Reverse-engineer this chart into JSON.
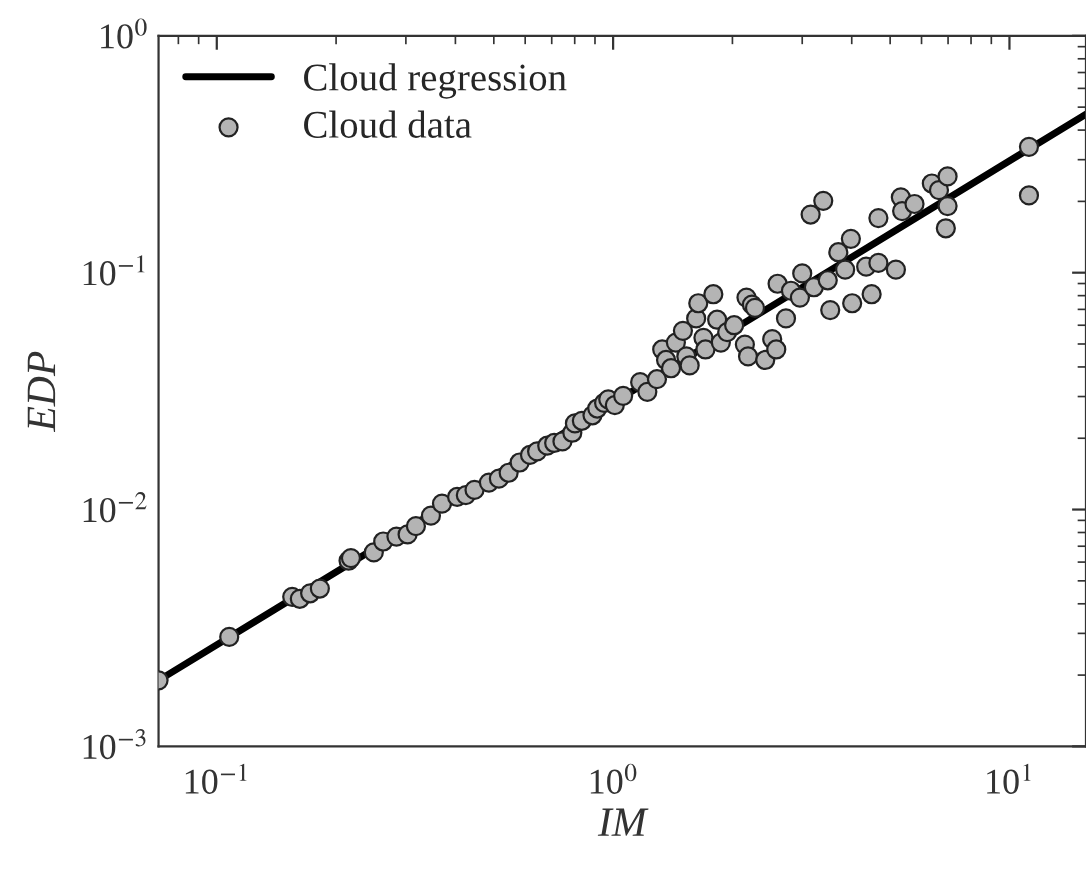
{
  "chart_data": {
    "type": "scatter",
    "xlabel": "IM",
    "ylabel": "EDP",
    "log": "xy",
    "xlim": [
      0.0713,
      15.6
    ],
    "ylim": [
      0.001,
      1
    ],
    "xticks": [
      {
        "value": 0.1,
        "label": "10$^{−1}$"
      },
      {
        "value": 1,
        "label": "10$^{0}$"
      },
      {
        "value": 10,
        "label": "10$^{1}$"
      }
    ],
    "yticks": [
      {
        "value": 0.001,
        "label": "10$^{−3}$"
      },
      {
        "value": 0.01,
        "label": "10$^{−2}$"
      },
      {
        "value": 0.1,
        "label": "10$^{−1}$"
      },
      {
        "value": 1,
        "label": "10$^{0}$"
      }
    ],
    "grid": false,
    "legend": "top left",
    "series": [
      {
        "name": "Cloud regression",
        "type": "line",
        "color": "#000000",
        "marker": "none",
        "line_style": "solid",
        "x": [
          0.0713,
          15.6
        ],
        "values": [
          0.0019,
          0.467
        ]
      },
      {
        "name": "Cloud data",
        "color": "#b4b4b4",
        "marker": "circle",
        "x": [
          0.0713,
          0.1075,
          0.155,
          0.162,
          0.172,
          0.182,
          0.215,
          0.218,
          0.249,
          0.263,
          0.284,
          0.303,
          0.318,
          0.347,
          0.37,
          0.404,
          0.425,
          0.447,
          0.486,
          0.515,
          0.545,
          0.581,
          0.617,
          0.643,
          0.682,
          0.71,
          0.745,
          0.789,
          0.801,
          0.834,
          0.887,
          0.912,
          0.949,
          0.972,
          1.01,
          1.06,
          1.17,
          1.22,
          1.29,
          1.33,
          1.36,
          1.4,
          1.44,
          1.5,
          1.53,
          1.56,
          1.62,
          1.64,
          1.69,
          1.71,
          1.79,
          1.83,
          1.87,
          1.94,
          2.02,
          2.15,
          2.17,
          2.19,
          2.24,
          2.28,
          2.42,
          2.52,
          2.58,
          2.6,
          2.73,
          2.81,
          2.96,
          3.0,
          3.15,
          3.21,
          3.39,
          3.48,
          3.53,
          3.7,
          3.85,
          3.98,
          4.01,
          4.35,
          4.49,
          4.67,
          4.67,
          5.17,
          5.32,
          5.36,
          5.76,
          6.37,
          6.64,
          6.91,
          6.98,
          6.98,
          11.2,
          11.2
        ],
        "values": [
          0.0019,
          0.0029,
          0.00428,
          0.0042,
          0.00443,
          0.00464,
          0.00608,
          0.00624,
          0.00659,
          0.00733,
          0.00769,
          0.00785,
          0.00851,
          0.00942,
          0.0106,
          0.0113,
          0.0115,
          0.0121,
          0.013,
          0.0135,
          0.0143,
          0.0158,
          0.017,
          0.0176,
          0.0186,
          0.0191,
          0.0194,
          0.0211,
          0.0231,
          0.0237,
          0.025,
          0.0267,
          0.0282,
          0.0292,
          0.0276,
          0.0302,
          0.0345,
          0.0314,
          0.0355,
          0.0474,
          0.0428,
          0.0395,
          0.0507,
          0.0568,
          0.0443,
          0.0406,
          0.0641,
          0.0743,
          0.0531,
          0.0474,
          0.0811,
          0.0633,
          0.0507,
          0.0561,
          0.06,
          0.0497,
          0.0785,
          0.0443,
          0.0733,
          0.071,
          0.0428,
          0.0524,
          0.0474,
          0.0898,
          0.0641,
          0.0839,
          0.0785,
          0.0993,
          0.176,
          0.0868,
          0.201,
          0.0929,
          0.0695,
          0.122,
          0.103,
          0.139,
          0.0743,
          0.106,
          0.0811,
          0.17,
          0.11,
          0.103,
          0.208,
          0.182,
          0.195,
          0.238,
          0.223,
          0.154,
          0.255,
          0.191,
          0.34,
          0.212
        ]
      }
    ]
  }
}
